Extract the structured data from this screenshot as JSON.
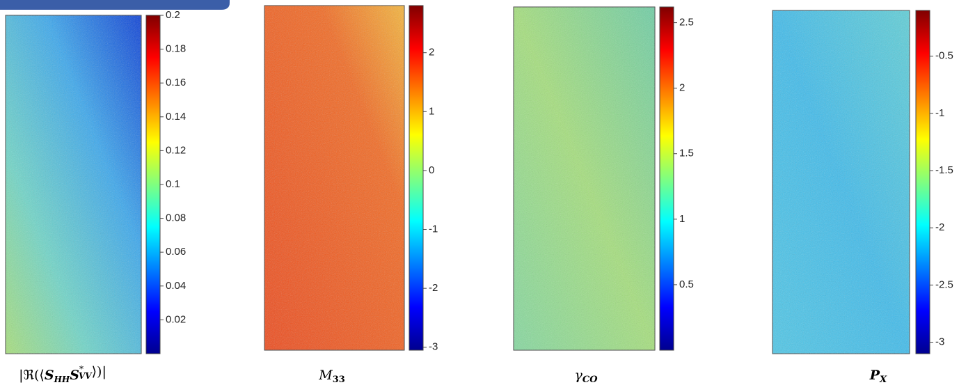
{
  "panels": [
    {
      "caption": [
        "|ℜ(⟨",
        "S",
        "HH",
        "S",
        "*",
        "VV",
        "⟩)|"
      ],
      "clim": [
        0,
        0.2
      ],
      "ticks": [
        0.2,
        0.18,
        0.16,
        0.14,
        0.12,
        0.1,
        0.08,
        0.06,
        0.04,
        0.02
      ]
    },
    {
      "caption": [
        "M",
        "33"
      ],
      "clim": [
        -3.05,
        2.8
      ],
      "ticks": [
        2,
        1,
        0,
        -1,
        -2,
        -3
      ]
    },
    {
      "caption": [
        "γ",
        "CO"
      ],
      "clim": [
        0,
        2.62
      ],
      "ticks": [
        2.5,
        2,
        1.5,
        1,
        0.5
      ]
    },
    {
      "caption": [
        "P",
        "X"
      ],
      "clim": [
        -3.1,
        -0.1
      ],
      "ticks": [
        -0.5,
        -1,
        -1.5,
        -2,
        -2.5,
        -3
      ]
    }
  ]
}
